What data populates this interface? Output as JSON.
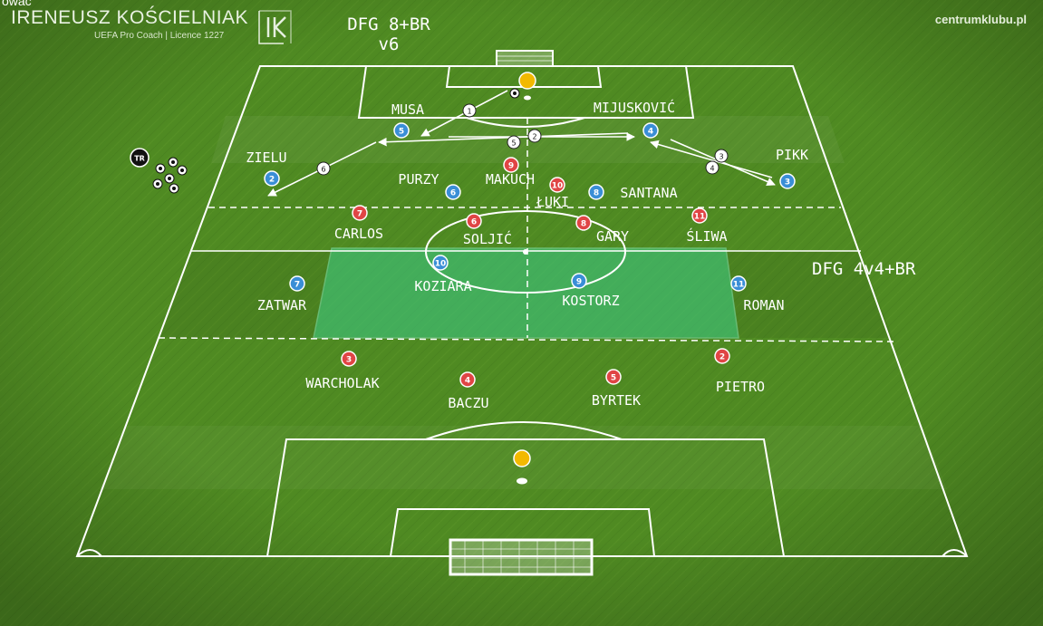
{
  "header": {
    "top_crop": "ować",
    "coach_name": "IRENEUSZ KOŚCIELNIAK",
    "coach_subtitle": "UEFA Pro Coach  |  Licence 1227",
    "site": "centrumklubu.pl"
  },
  "titles": {
    "drill_line1": "DFG  8+BR",
    "drill_line2": "v6",
    "zone": "DFG  4v4+BR"
  },
  "badge_tr": "TR",
  "colors": {
    "red_team": "#e04545",
    "blue_team": "#3a8ed6",
    "goalkeeper": "#f2b900",
    "zone_fill": "#3fd18a"
  },
  "players": {
    "red": [
      {
        "number": "9",
        "name": "MAKUCH"
      },
      {
        "number": "10",
        "name": "ŁUKI"
      },
      {
        "number": "7",
        "name": "CARLOS"
      },
      {
        "number": "6",
        "name": "SOLJIĆ"
      },
      {
        "number": "8",
        "name": "GARY"
      },
      {
        "number": "11",
        "name": "ŚLIWA"
      },
      {
        "number": "3",
        "name": "WARCHOLAK"
      },
      {
        "number": "4",
        "name": "BACZU"
      },
      {
        "number": "5",
        "name": "BYRTEK"
      },
      {
        "number": "2",
        "name": "PIETRO"
      }
    ],
    "blue": [
      {
        "number": "5",
        "name": "MUSA"
      },
      {
        "number": "4",
        "name": "MIJUSKOVIĆ"
      },
      {
        "number": "2",
        "name": "ZIELU"
      },
      {
        "number": "3",
        "name": "PIKK"
      },
      {
        "number": "6",
        "name": "PURZY"
      },
      {
        "number": "8",
        "name": "SANTANA"
      },
      {
        "number": "7",
        "name": "ZATWAR"
      },
      {
        "number": "10",
        "name": "KOZIARA"
      },
      {
        "number": "9",
        "name": "KOSTORZ"
      },
      {
        "number": "11",
        "name": "ROMAN"
      }
    ]
  },
  "pass_steps": [
    "1",
    "2",
    "5",
    "3",
    "4",
    "6"
  ]
}
